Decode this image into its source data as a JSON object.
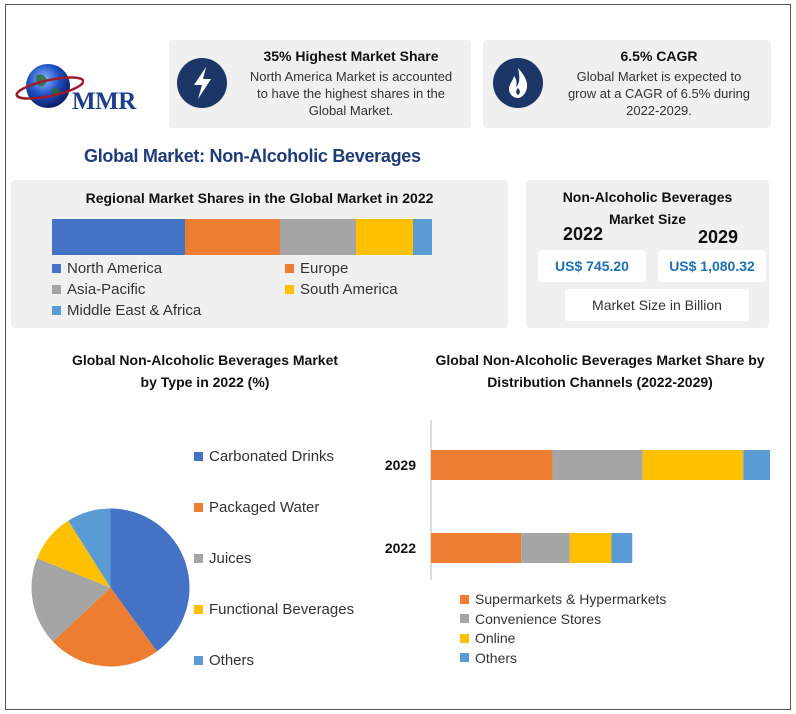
{
  "brand": {
    "name": "MMR"
  },
  "colors": {
    "blue": "#4472c4",
    "orange": "#ed7d31",
    "gray": "#a5a5a5",
    "yellow": "#ffc000",
    "lightblue": "#5b9bd5",
    "navy": "#1c3668"
  },
  "highlights": [
    {
      "icon": "lightning-icon",
      "title": "35% Highest Market Share",
      "lines": [
        "North America Market is accounted",
        "to have the highest shares in the",
        "Global Market."
      ]
    },
    {
      "icon": "flame-icon",
      "title": "6.5% CAGR",
      "lines": [
        "Global Market is expected to",
        "grow at a CAGR of 6.5% during",
        "2022-2029."
      ]
    }
  ],
  "main_title": "Global Market: Non-Alcoholic Beverages",
  "market_size": {
    "title_line1": "Non-Alcoholic Beverages",
    "title_line2": "Market Size",
    "year_a": "2022",
    "year_b": "2029",
    "value_a": "US$ 745.20",
    "value_b": "US$ 1,080.32",
    "unit": "Market Size in Billion"
  },
  "chart_data": [
    {
      "type": "bar",
      "orientation": "horizontal-stacked",
      "title": "Regional Market Shares in the Global Market in 2022",
      "categories": [
        "2022"
      ],
      "series": [
        {
          "name": "North America",
          "values": [
            35
          ],
          "color": "#4472c4"
        },
        {
          "name": "Europe",
          "values": [
            25
          ],
          "color": "#ed7d31"
        },
        {
          "name": "Asia-Pacific",
          "values": [
            20
          ],
          "color": "#a5a5a5"
        },
        {
          "name": "South America",
          "values": [
            15
          ],
          "color": "#ffc000"
        },
        {
          "name": "Middle East & Africa",
          "values": [
            5
          ],
          "color": "#5b9bd5"
        }
      ]
    },
    {
      "type": "pie",
      "title_line1": "Global Non-Alcoholic Beverages Market",
      "title_line2": "by Type in 2022 (%)",
      "slices": [
        {
          "label": "Carbonated Drinks",
          "value": 40,
          "color": "#4472c4"
        },
        {
          "label": "Packaged Water",
          "value": 23,
          "color": "#ed7d31"
        },
        {
          "label": "Juices",
          "value": 18,
          "color": "#a5a5a5"
        },
        {
          "label": "Functional Beverages",
          "value": 10,
          "color": "#ffc000"
        },
        {
          "label": "Others",
          "value": 9,
          "color": "#5b9bd5"
        }
      ]
    },
    {
      "type": "bar",
      "orientation": "horizontal-stacked",
      "title_line1": "Global Non-Alcoholic Beverages Market Share by",
      "title_line2": "Distribution Channels (2022-2029)",
      "categories": [
        "2029",
        "2022"
      ],
      "series": [
        {
          "name": "Supermarkets & Hypermarkets",
          "values": [
            35,
            26
          ],
          "color": "#ed7d31"
        },
        {
          "name": "Convenience Stores",
          "values": [
            26,
            14
          ],
          "color": "#a5a5a5"
        },
        {
          "name": "Online",
          "values": [
            29,
            12
          ],
          "color": "#ffc000"
        },
        {
          "name": "Others",
          "values": [
            8,
            6
          ],
          "color": "#5b9bd5"
        }
      ],
      "xlim": [
        0,
        100
      ]
    }
  ]
}
